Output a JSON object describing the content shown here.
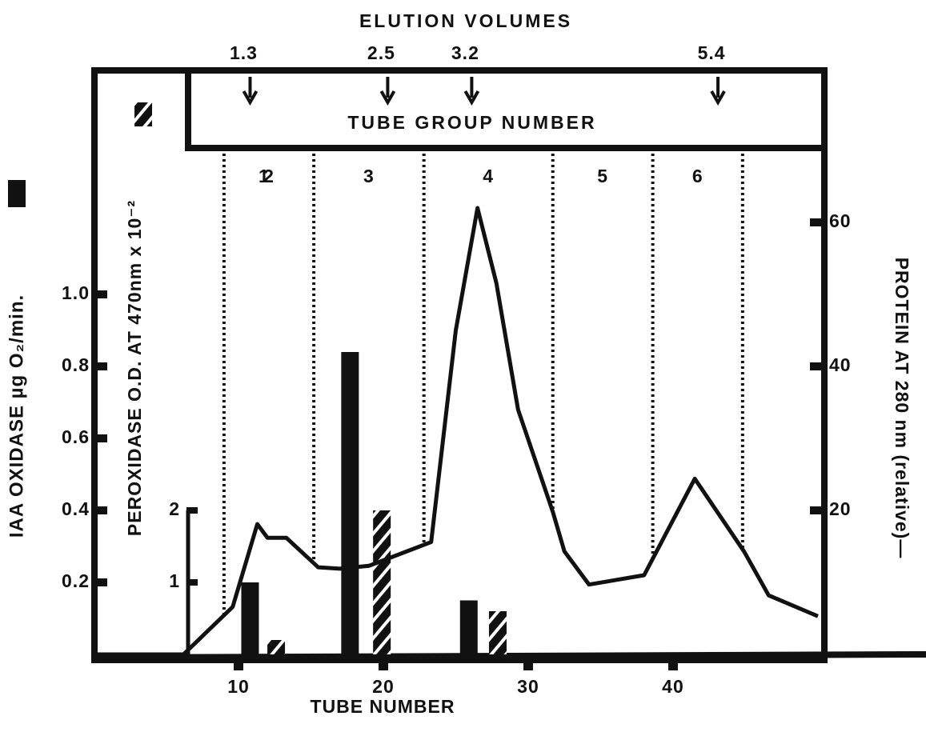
{
  "chart_data": {
    "type": "bar-line",
    "elution_title": "ELUTION VOLUMES",
    "elution_volumes": {
      "x": [
        10.8,
        20.3,
        26.1,
        43.1
      ],
      "values": [
        1.3,
        2.5,
        3.2,
        5.4
      ]
    },
    "group_title": "TUBE GROUP NUMBER",
    "groups": [
      1,
      2,
      3,
      4,
      5,
      6
    ],
    "group_boundaries": [
      9.0,
      15.2,
      22.8,
      31.7,
      38.6,
      44.8
    ],
    "xlabel": "TUBE NUMBER",
    "xlim": [
      0,
      50.5
    ],
    "xticks": [
      10,
      20,
      30,
      40
    ],
    "ylabel": "IAA OXIDASE µg O₂/min.",
    "ylim": [
      0,
      1.6
    ],
    "yticks": [
      0.2,
      0.4,
      0.6,
      0.8,
      {
        "value": 1,
        "label": "1.0"
      }
    ],
    "y3label": "PEROXIDASE O.D. AT 470nm x 10⁻²",
    "y3lim": [
      0,
      8
    ],
    "y3ticks": [
      1,
      2
    ],
    "y2label": "PROTEIN AT 280 nm (relative)—",
    "y2lim": [
      0,
      80
    ],
    "y2ticks": [
      20,
      40,
      60
    ],
    "series": [
      {
        "type": "bar",
        "color": "#111111",
        "x": [
          10.8,
          17.7,
          25.9
        ],
        "values": [
          0.2,
          0.84,
          0.15
        ]
      },
      {
        "type": "bar",
        "axis": "y3",
        "color": "#111111",
        "pattern": "hatch",
        "x": [
          12.6,
          19.9,
          27.9
        ],
        "values": [
          0.2,
          2.0,
          0.6
        ]
      },
      {
        "type": "line",
        "axis": "y2",
        "color": "#111111",
        "x": [
          0,
          6.2,
          9.6,
          11.3,
          12.0,
          13.3,
          15.5,
          17.0,
          19.0,
          23.3,
          25.0,
          26.5,
          27.8,
          29.3,
          31.7,
          32.5,
          34.2,
          38.0,
          41.5,
          44.9,
          46.6,
          50.0
        ],
        "values": [
          0,
          0,
          6.6,
          18.1,
          16.2,
          16.2,
          12.1,
          11.9,
          12.3,
          15.6,
          45,
          62,
          51.6,
          34,
          19.8,
          14.3,
          9.7,
          11,
          24.4,
          14.3,
          8.2,
          5.3
        ]
      }
    ]
  }
}
